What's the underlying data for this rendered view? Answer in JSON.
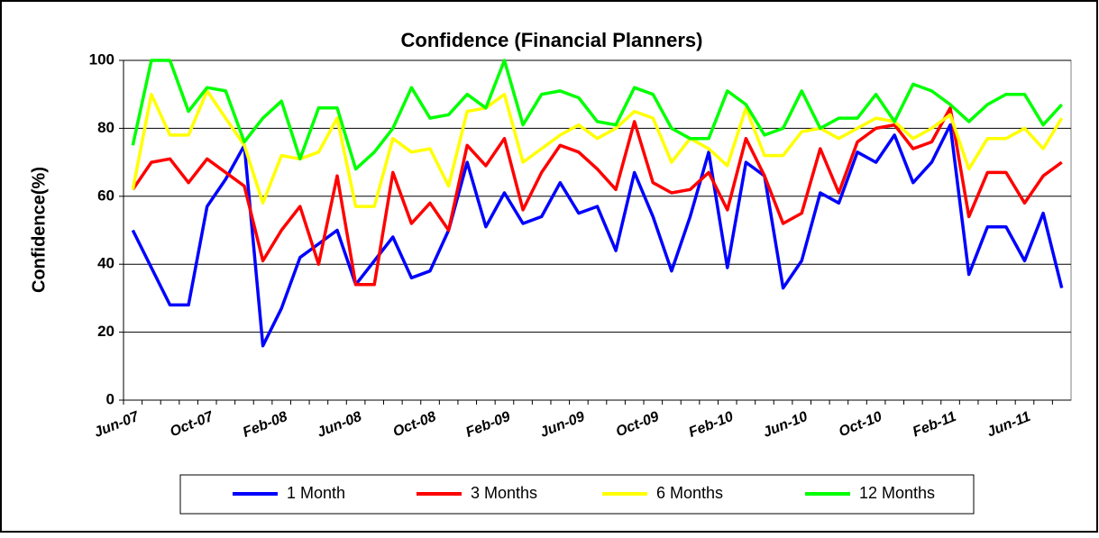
{
  "chart_data": {
    "type": "line",
    "title": "Confidence (Financial Planners)",
    "y_label": "Confidence(%)",
    "categories": [
      "Jun-07",
      null,
      null,
      null,
      "Oct-07",
      null,
      null,
      null,
      "Feb-08",
      null,
      null,
      null,
      "Jun-08",
      null,
      null,
      null,
      "Oct-08",
      null,
      null,
      null,
      "Feb-09",
      null,
      null,
      null,
      "Jun-09",
      null,
      null,
      null,
      "Oct-09",
      null,
      null,
      null,
      "Feb-10",
      null,
      null,
      null,
      "Jun-10",
      null,
      null,
      null,
      "Oct-10",
      null,
      null,
      null,
      "Feb-11",
      null,
      null,
      null,
      "Jun-11",
      null,
      null
    ],
    "series": [
      {
        "name": "1 Month",
        "color": "#0000ff",
        "values": [
          50,
          39,
          28,
          28,
          57,
          65,
          75,
          16,
          27,
          42,
          46,
          50,
          34,
          41,
          48,
          36,
          38,
          50,
          70,
          51,
          61,
          52,
          54,
          64,
          55,
          57,
          44,
          67,
          54,
          38,
          54,
          73,
          39,
          70,
          66,
          33,
          41,
          61,
          58,
          73,
          70,
          78,
          64,
          70,
          81,
          37,
          51,
          51,
          41,
          55,
          33
        ]
      },
      {
        "name": "3 Months",
        "color": "#ff0000",
        "values": [
          62,
          70,
          71,
          64,
          71,
          67,
          63,
          41,
          50,
          57,
          40,
          66,
          34,
          34,
          67,
          52,
          58,
          50,
          75,
          69,
          77,
          56,
          67,
          75,
          73,
          68,
          62,
          82,
          64,
          61,
          62,
          67,
          56,
          77,
          66,
          52,
          55,
          74,
          61,
          76,
          80,
          81,
          74,
          76,
          86,
          54,
          67,
          67,
          58,
          66,
          70
        ]
      },
      {
        "name": "6 Months",
        "color": "#ffff00",
        "values": [
          62,
          90,
          78,
          78,
          91,
          83,
          75,
          58,
          72,
          71,
          73,
          83,
          57,
          57,
          77,
          73,
          74,
          63,
          85,
          86,
          90,
          70,
          74,
          78,
          81,
          77,
          80,
          85,
          83,
          70,
          77,
          74,
          69,
          86,
          72,
          72,
          79,
          80,
          77,
          80,
          83,
          82,
          77,
          80,
          84,
          68,
          77,
          77,
          80,
          74,
          83
        ]
      },
      {
        "name": "12 Months",
        "color": "#00ff00",
        "values": [
          75,
          100,
          100,
          85,
          92,
          91,
          76,
          83,
          88,
          71,
          86,
          86,
          68,
          73,
          80,
          92,
          83,
          84,
          90,
          86,
          100,
          81,
          90,
          91,
          89,
          82,
          81,
          92,
          90,
          80,
          77,
          77,
          91,
          87,
          78,
          80,
          91,
          80,
          83,
          83,
          90,
          82,
          93,
          91,
          87,
          82,
          87,
          90,
          90,
          81,
          87
        ]
      }
    ],
    "ylim": [
      0,
      100
    ],
    "yticks": [
      0,
      20,
      40,
      60,
      80,
      100
    ],
    "grid": true,
    "legend": "bottom"
  }
}
